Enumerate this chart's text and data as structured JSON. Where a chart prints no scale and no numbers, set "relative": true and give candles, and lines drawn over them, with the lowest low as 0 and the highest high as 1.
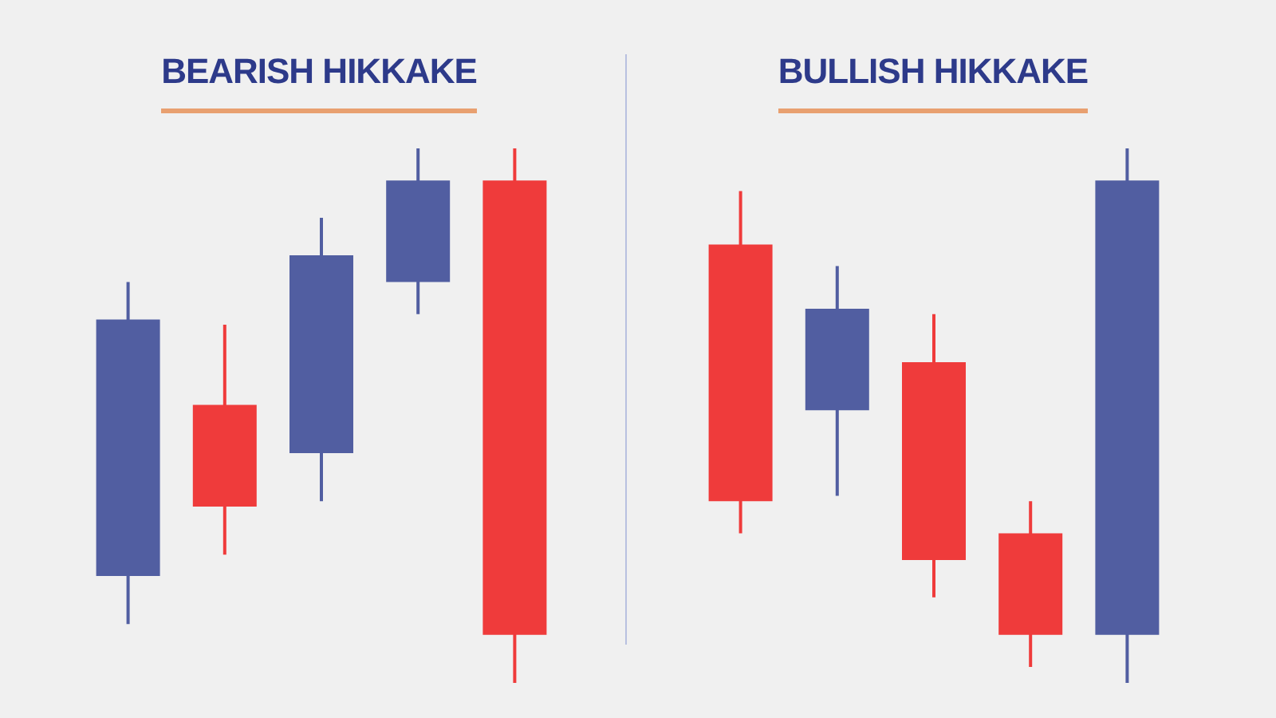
{
  "chart_data": [
    {
      "type": "candlestick",
      "title": "BEARISH HIKKAKE",
      "relative": true,
      "categories": [
        null,
        null,
        null,
        null,
        null
      ],
      "ohlc": [
        [
          0.2,
          0.75,
          0.11,
          0.68
        ],
        [
          0.52,
          0.67,
          0.24,
          0.33
        ],
        [
          0.43,
          0.87,
          0.34,
          0.8
        ],
        [
          0.75,
          1,
          0.69,
          0.94
        ],
        [
          0.94,
          1,
          0,
          0.09
        ]
      ],
      "colors": [
        "#515ea1",
        "#ef3b3b",
        "#515ea1",
        "#515ea1",
        "#ef3b3b"
      ]
    },
    {
      "type": "candlestick",
      "title": "BULLISH HIKKAKE",
      "relative": true,
      "categories": [
        null,
        null,
        null,
        null,
        null
      ],
      "ohlc": [
        [
          0.82,
          0.92,
          0.28,
          0.34
        ],
        [
          0.51,
          0.78,
          0.35,
          0.7
        ],
        [
          0.6,
          0.69,
          0.16,
          0.23
        ],
        [
          0.28,
          0.34,
          0.03,
          0.09
        ],
        [
          0.09,
          1,
          0,
          0.94
        ]
      ],
      "colors": [
        "#ef3b3b",
        "#515ea1",
        "#ef3b3b",
        "#ef3b3b",
        "#515ea1"
      ]
    }
  ]
}
